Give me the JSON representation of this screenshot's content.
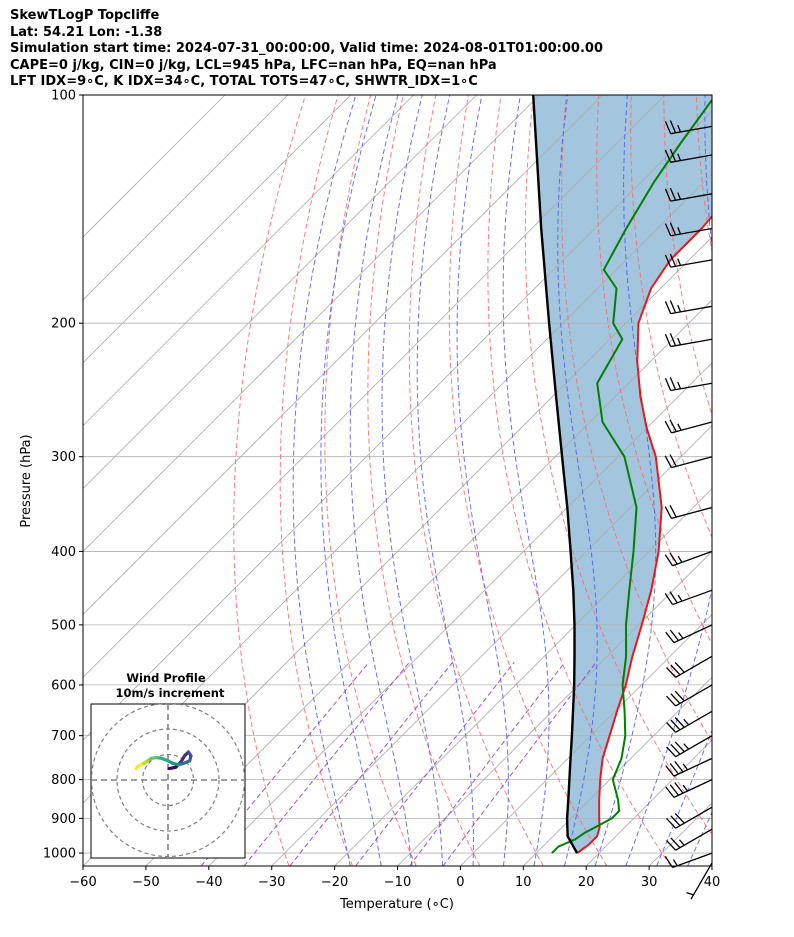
{
  "header": {
    "line1": "SkewTLogP Topcliffe",
    "line2": "Lat: 54.21   Lon: -1.38",
    "line3": "Simulation start time: 2024-07-31_00:00:00, Valid time: 2024-08-01T01:00:00.00",
    "line4": "CAPE=0 j/kg, CIN=0 j/kg, LCL=945 hPa, LFC=nan hPa, EQ=nan hPa",
    "line5": "LFT IDX=9∘C, K IDX=34∘C, TOTAL TOTS=47∘C, SHWTR_IDX=1∘C"
  },
  "colors": {
    "temperature": "#e41a1c",
    "dewpoint": "#008000",
    "parcel": "#000000",
    "shade": "#a3c6de",
    "dry_adiabat": "#ff6666",
    "moist_adiabat": "#4b5bf0",
    "mixing_ratio": "#9932cc",
    "isotherm": "#aaaaaa"
  },
  "chart_data": {
    "type": "line",
    "subtype": "skew-t log-p",
    "xlabel": "Temperature (∘C)",
    "ylabel": "Pressure (hPa)",
    "xlim": [
      -60,
      40
    ],
    "ylim": [
      1040,
      100
    ],
    "y_scale": "log",
    "grid": true,
    "x_ticks": [
      "−60",
      "−50",
      "−40",
      "−30",
      "−20",
      "−10",
      "0",
      "10",
      "20",
      "30",
      "40"
    ],
    "x_tick_values": [
      -60,
      -50,
      -40,
      -30,
      -20,
      -10,
      0,
      10,
      20,
      30,
      40
    ],
    "y_ticks": [
      "1000",
      "900",
      "800",
      "700",
      "600",
      "500",
      "400",
      "300",
      "200",
      "100"
    ],
    "y_tick_values": [
      1000,
      900,
      800,
      700,
      600,
      500,
      400,
      300,
      200,
      100
    ],
    "series": [
      {
        "key": "temperature",
        "pressure": [
          1000,
          975,
          950,
          925,
          900,
          850,
          800,
          750,
          700,
          650,
          600,
          550,
          500,
          450,
          400,
          350,
          300,
          275,
          250,
          225,
          200,
          180,
          165,
          150,
          130,
          115,
          100
        ],
        "values": [
          16.5,
          17,
          17,
          16,
          14.5,
          11.5,
          8.5,
          5.5,
          3,
          0.3,
          -2.5,
          -6,
          -9.5,
          -13.5,
          -18.5,
          -25,
          -34,
          -40,
          -46,
          -52,
          -58,
          -61.5,
          -63,
          -63,
          -64,
          -65,
          -66
        ]
      },
      {
        "key": "dewpoint",
        "pressure": [
          1000,
          980,
          960,
          940,
          920,
          900,
          880,
          850,
          800,
          750,
          700,
          650,
          600,
          550,
          500,
          450,
          400,
          350,
          300,
          270,
          240,
          210,
          200,
          180,
          170,
          150,
          130,
          115,
          100
        ],
        "values": [
          12.5,
          12.5,
          14,
          14.5,
          15.5,
          16.5,
          16.5,
          14.5,
          10.5,
          8.5,
          5.5,
          1.5,
          -3,
          -7,
          -12,
          -17,
          -22.5,
          -29,
          -39,
          -48,
          -55,
          -58,
          -62,
          -67,
          -72,
          -75,
          -78,
          -80,
          -82
        ]
      },
      {
        "key": "parcel",
        "pressure": [
          1000,
          950,
          900,
          850,
          800,
          750,
          700,
          650,
          600,
          550,
          500,
          450,
          400,
          350,
          300,
          250,
          200,
          150,
          100
        ],
        "values": [
          16.5,
          12.3,
          9.4,
          6.6,
          3.6,
          0.4,
          -3.0,
          -6.7,
          -10.7,
          -15.2,
          -20.2,
          -25.9,
          -32.5,
          -40.0,
          -48.9,
          -59.4,
          -72.2,
          -88.5,
          -111.0
        ]
      }
    ],
    "wind_barbs": {
      "pressure": [
        1030,
        1000,
        930,
        870,
        800,
        750,
        700,
        650,
        600,
        550,
        500,
        450,
        400,
        350,
        300,
        270,
        240,
        210,
        190,
        165,
        150,
        135,
        120,
        110
      ],
      "speed_kt": [
        5,
        15,
        25,
        30,
        35,
        35,
        35,
        35,
        30,
        30,
        25,
        25,
        25,
        20,
        20,
        25,
        25,
        25,
        25,
        25,
        25,
        25,
        25,
        25
      ],
      "direction_deg": [
        210,
        250,
        240,
        240,
        245,
        245,
        240,
        240,
        240,
        240,
        245,
        250,
        250,
        255,
        255,
        255,
        260,
        260,
        260,
        260,
        260,
        260,
        260,
        260
      ]
    },
    "hodograph": {
      "title": "Wind Profile",
      "subtitle": "10m/s increment",
      "u": [
        0.5,
        3,
        5,
        6.5,
        8,
        9,
        8.5,
        6,
        4,
        2,
        0,
        -2.5,
        -4.5,
        -6.5,
        -8,
        -9.5,
        -10.5,
        -11.5,
        -12.5
      ],
      "v": [
        4.5,
        5,
        7,
        9.5,
        11,
        9.5,
        7.5,
        6.5,
        6,
        6.5,
        7.5,
        8.5,
        8.8,
        8.5,
        7.5,
        6.5,
        6,
        5.5,
        4.5
      ],
      "ring_radii_ms": [
        10,
        20,
        30
      ]
    }
  }
}
